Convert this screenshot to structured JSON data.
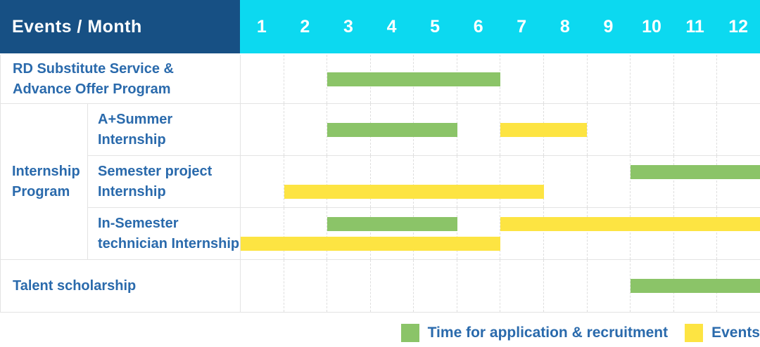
{
  "header": {
    "title": "Events / Month",
    "months": [
      "1",
      "2",
      "3",
      "4",
      "5",
      "6",
      "7",
      "8",
      "9",
      "10",
      "11",
      "12"
    ]
  },
  "colors": {
    "header_bg": "#175084",
    "month_header_bg": "#0CD9F0",
    "application": "#8BC468",
    "event": "#FDE442",
    "label_text": "#2A6AAC",
    "grid_solid": "#E3E3E3",
    "grid_dashed": "#DEDEDE"
  },
  "chart_data": {
    "type": "bar",
    "subtype": "gantt",
    "title": "Events / Month",
    "x_axis_months": [
      1,
      2,
      3,
      4,
      5,
      6,
      7,
      8,
      9,
      10,
      11,
      12
    ],
    "x_range": [
      1,
      12
    ],
    "grid": "dashed-vertical-per-month",
    "legend_position": "bottom-right",
    "sections": [
      {
        "group_label_lines": null,
        "rows": [
          {
            "label": "RD Substitute Service & Advance Offer Program",
            "label_lines": [
              "RD Substitute Service &",
              "Advance Offer Program"
            ],
            "lanes": [
              [
                {
                  "kind": "application",
                  "start_month": 3,
                  "end_month": 6
                }
              ]
            ]
          }
        ]
      },
      {
        "group_label": "Internship Program",
        "group_label_lines": [
          "Internship",
          "Program"
        ],
        "rows": [
          {
            "label": "A+Summer Internship",
            "label_lines": [
              "A+Summer",
              "Internship"
            ],
            "lanes": [
              [
                {
                  "kind": "application",
                  "start_month": 3,
                  "end_month": 5
                },
                {
                  "kind": "event",
                  "start_month": 7,
                  "end_month": 8
                }
              ]
            ]
          },
          {
            "label": "Semester project Internship",
            "label_lines": [
              "Semester project",
              "Internship"
            ],
            "lanes": [
              [
                {
                  "kind": "application",
                  "start_month": 10,
                  "end_month": 12
                }
              ],
              [
                {
                  "kind": "event",
                  "start_month": 2,
                  "end_month": 7
                }
              ]
            ]
          },
          {
            "label": "In-Semester technician Internship",
            "label_lines": [
              "In-Semester",
              "technician Internship"
            ],
            "lanes": [
              [
                {
                  "kind": "application",
                  "start_month": 3,
                  "end_month": 5
                },
                {
                  "kind": "event",
                  "start_month": 7,
                  "end_month": 12
                }
              ],
              [
                {
                  "kind": "event",
                  "start_month": 1,
                  "end_month": 6
                }
              ]
            ]
          }
        ]
      },
      {
        "group_label_lines": null,
        "rows": [
          {
            "label": "Talent scholarship",
            "label_lines": [
              "Talent scholarship"
            ],
            "lanes": [
              [
                {
                  "kind": "application",
                  "start_month": 10,
                  "end_month": 12
                }
              ]
            ]
          }
        ]
      }
    ],
    "legend": [
      {
        "kind": "application",
        "label": "Time for application & recruitment"
      },
      {
        "kind": "event",
        "label": "Events"
      }
    ]
  }
}
